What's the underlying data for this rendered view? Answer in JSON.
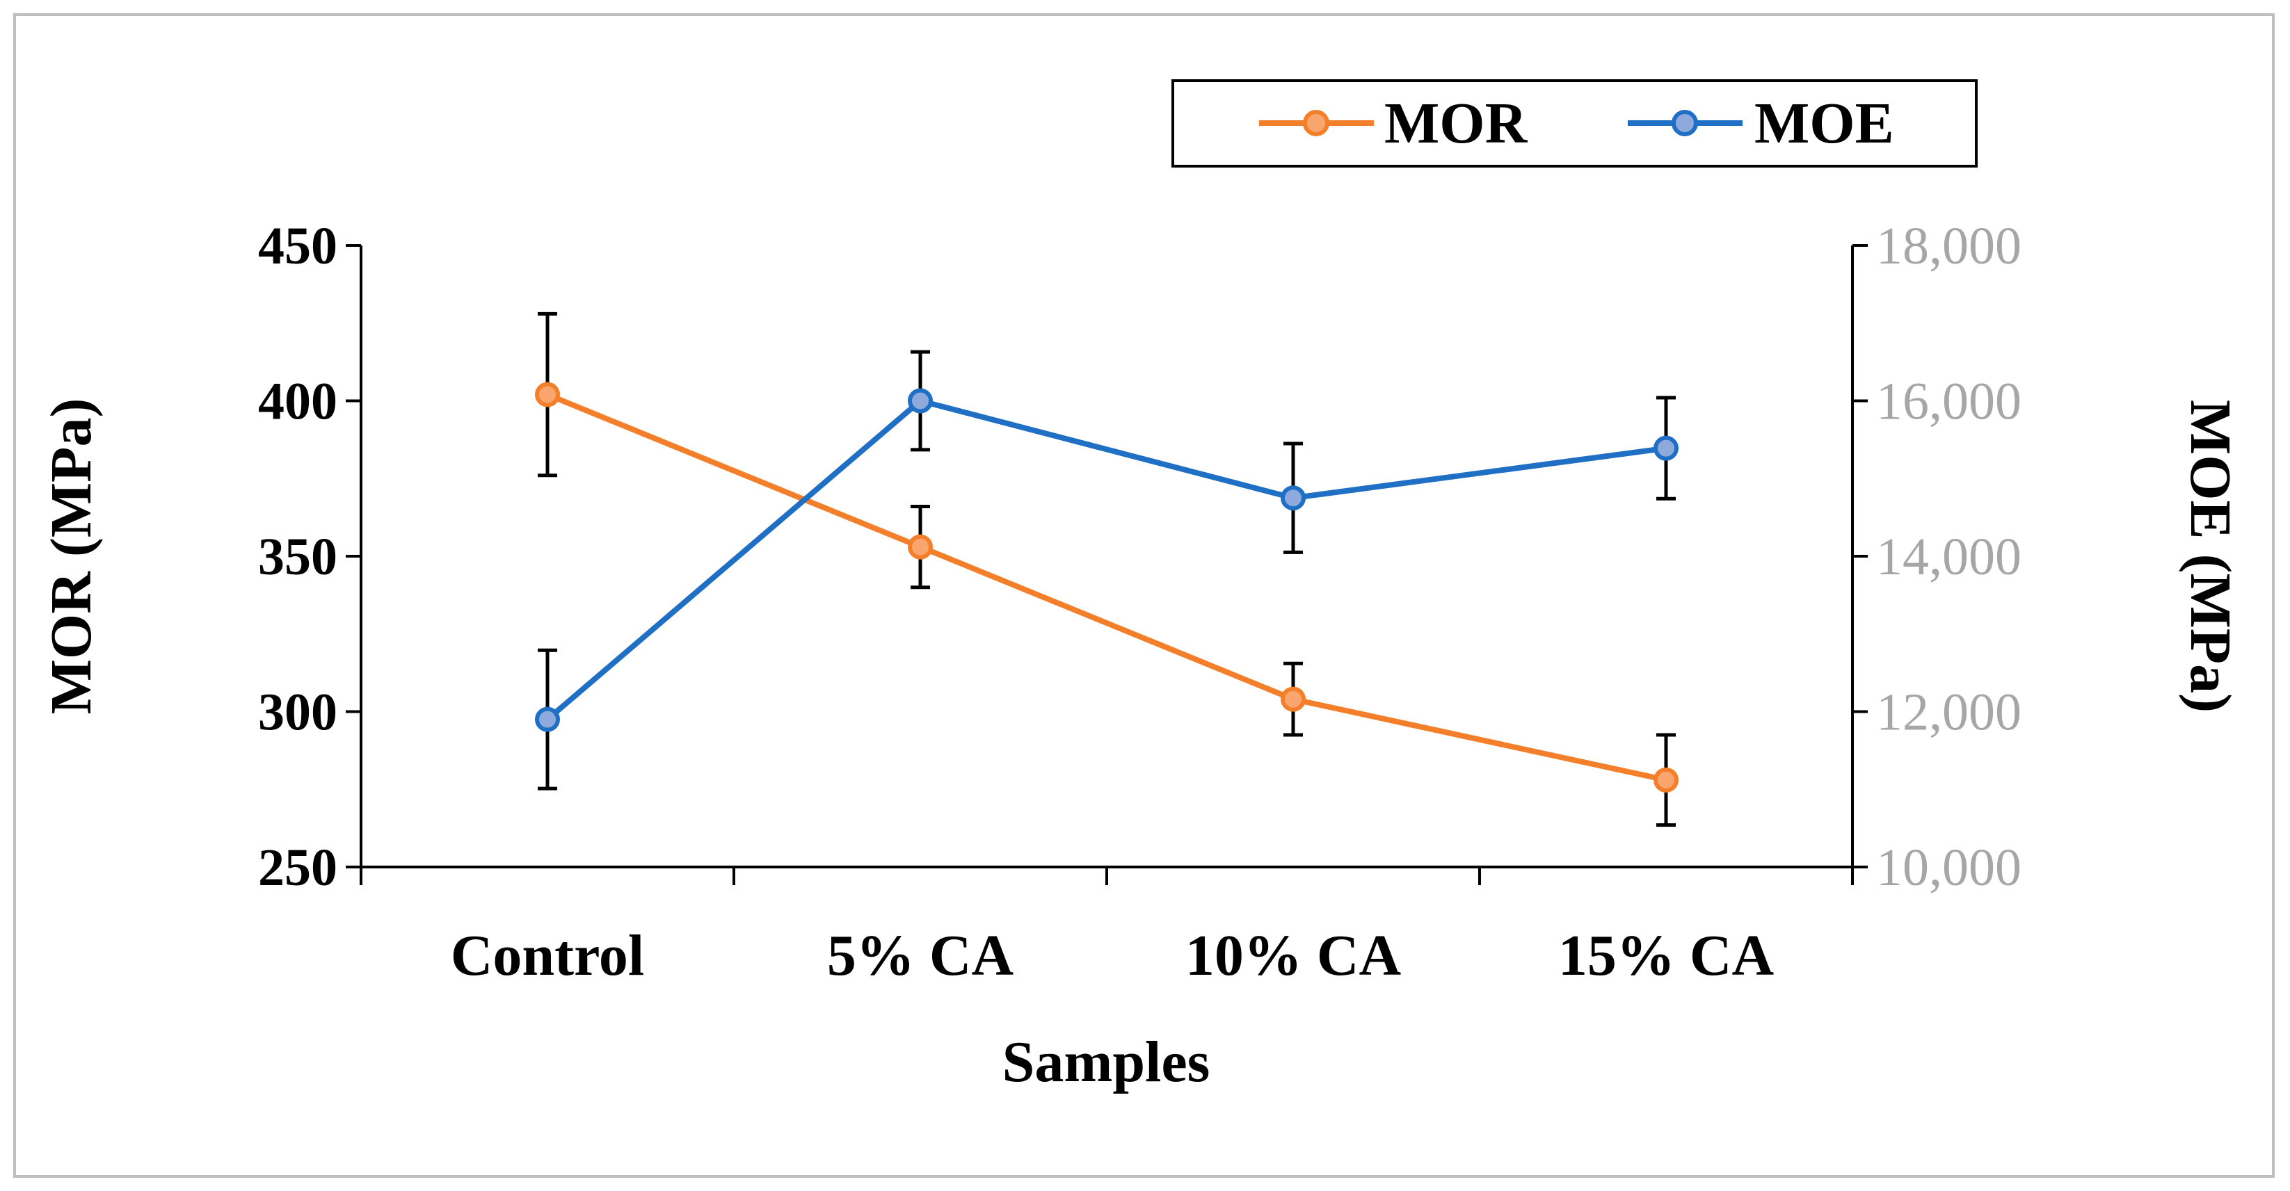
{
  "chart_data": {
    "type": "line",
    "title": "",
    "xlabel": "Samples",
    "ylabel": "MOR (MPa)",
    "y2label": "MOE (MPa)",
    "categories": [
      "Control",
      "5% CA",
      "10% CA",
      "15% CA"
    ],
    "ylim": [
      250,
      450
    ],
    "yticks": [
      "250",
      "300",
      "350",
      "400",
      "450"
    ],
    "y2lim": [
      10000,
      18000
    ],
    "y2ticks": [
      "10,000",
      "12,000",
      "14,000",
      "16,000",
      "18,000"
    ],
    "grid": false,
    "legend_position": "top-right",
    "series": [
      {
        "name": "MOR",
        "axis": "left",
        "color": "#F47F2A",
        "values": [
          402,
          353,
          304,
          278
        ],
        "errors": [
          26,
          13,
          11.5,
          14.5
        ]
      },
      {
        "name": "MOE",
        "axis": "right",
        "color": "#1F6FC5",
        "values": [
          11900,
          16000,
          14750,
          15390
        ],
        "errors": [
          890,
          630,
          700,
          650
        ]
      }
    ],
    "colors": {
      "left_axis_text": "#000000",
      "right_axis_text": "#A6A6A6",
      "error_bar": "#000000"
    }
  }
}
